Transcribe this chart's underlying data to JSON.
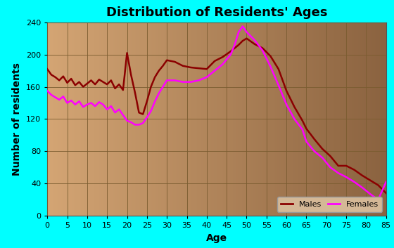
{
  "title": "Distribution of Residents' Ages",
  "xlabel": "Age",
  "ylabel": "Number of residents",
  "background_outer": "#00FFFF",
  "background_inner_left": "#D4A574",
  "background_inner_right": "#8B6340",
  "grid_color": "#7A5C30",
  "title_fontsize": 13,
  "label_fontsize": 10,
  "tick_fontsize": 8,
  "ylim": [
    0,
    240
  ],
  "xlim": [
    0,
    85
  ],
  "yticks": [
    0,
    40,
    80,
    120,
    160,
    200,
    240
  ],
  "xticks": [
    0,
    5,
    10,
    15,
    20,
    25,
    30,
    35,
    40,
    45,
    50,
    55,
    60,
    65,
    70,
    75,
    80,
    85
  ],
  "males_ages": [
    0,
    1,
    2,
    3,
    4,
    5,
    6,
    7,
    8,
    9,
    10,
    11,
    12,
    13,
    14,
    15,
    16,
    17,
    18,
    19,
    20,
    21,
    22,
    23,
    24,
    25,
    26,
    27,
    28,
    29,
    30,
    32,
    34,
    36,
    38,
    40,
    42,
    44,
    46,
    48,
    49,
    50,
    52,
    54,
    56,
    58,
    60,
    62,
    64,
    65,
    67,
    69,
    71,
    73,
    75,
    77,
    79,
    81,
    83,
    85
  ],
  "males_values": [
    182,
    175,
    172,
    168,
    173,
    165,
    170,
    162,
    166,
    160,
    164,
    168,
    163,
    169,
    166,
    163,
    168,
    158,
    163,
    156,
    202,
    175,
    153,
    128,
    126,
    142,
    160,
    172,
    180,
    186,
    193,
    191,
    186,
    184,
    183,
    182,
    192,
    197,
    204,
    212,
    217,
    220,
    213,
    208,
    198,
    182,
    155,
    135,
    118,
    108,
    95,
    83,
    74,
    62,
    62,
    57,
    50,
    44,
    38,
    28
  ],
  "females_ages": [
    0,
    1,
    2,
    3,
    4,
    5,
    6,
    7,
    8,
    9,
    10,
    11,
    12,
    13,
    14,
    15,
    16,
    17,
    18,
    19,
    20,
    21,
    22,
    23,
    24,
    25,
    26,
    27,
    28,
    29,
    30,
    32,
    34,
    36,
    38,
    40,
    42,
    44,
    46,
    47,
    48,
    49,
    50,
    52,
    54,
    56,
    58,
    60,
    62,
    64,
    65,
    67,
    69,
    71,
    73,
    75,
    77,
    79,
    81,
    83,
    85
  ],
  "females_values": [
    155,
    150,
    147,
    144,
    148,
    140,
    143,
    138,
    142,
    135,
    138,
    140,
    136,
    141,
    138,
    132,
    136,
    128,
    132,
    125,
    118,
    116,
    113,
    113,
    115,
    122,
    130,
    142,
    152,
    160,
    168,
    168,
    166,
    166,
    168,
    172,
    180,
    188,
    200,
    212,
    228,
    235,
    228,
    218,
    205,
    185,
    162,
    138,
    120,
    107,
    92,
    80,
    72,
    60,
    53,
    48,
    42,
    35,
    27,
    20,
    42
  ],
  "males_color": "#8B0000",
  "females_color": "#FF00FF",
  "line_width": 1.8,
  "legend_bg": "#D4B896",
  "legend_border": "#999999"
}
